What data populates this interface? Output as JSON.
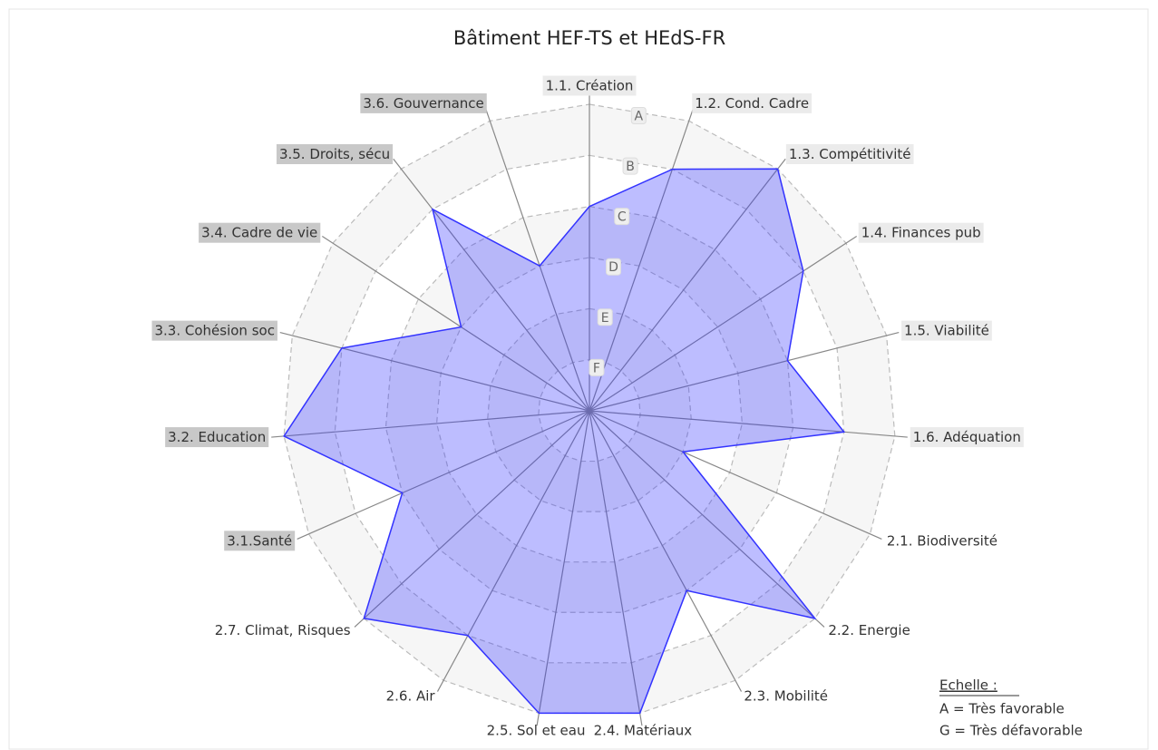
{
  "chart_data": {
    "type": "radar",
    "title": "Bâtiment HEF-TS et HEdS-FR",
    "categories": [
      "1.1. Création",
      "1.2. Cond. Cadre",
      "1.3. Compétitivité",
      "1.4. Finances pub",
      "1.5. Viabilité",
      "1.6. Adéquation",
      "2.1. Biodiversité",
      "2.2. Energie",
      "2.3. Mobilité",
      "2.4. Matériaux",
      "2.5. Sol et eau",
      "2.6. Air",
      "2.7. Climat, Risques",
      "3.1.Santé",
      "3.2. Education",
      "3.3. Cohésion soc",
      "3.4. Cadre de vie",
      "3.5. Droits, sécu",
      "3.6. Gouvernance"
    ],
    "label_colors": [
      "#ebebeb",
      "#ebebeb",
      "#ebebeb",
      "#ebebeb",
      "#ebebeb",
      "#ebebeb",
      "none",
      "none",
      "none",
      "none",
      "none",
      "none",
      "none",
      "#c8c8c8",
      "#c8c8c8",
      "#c8c8c8",
      "#c8c8c8",
      "#c8c8c8",
      "#c8c8c8"
    ],
    "values": [
      4,
      5,
      6,
      5,
      4,
      5,
      2,
      6,
      4,
      6,
      6,
      5,
      6,
      4,
      6,
      5,
      3,
      5,
      3
    ],
    "color": "#3333ff",
    "rlim": [
      0,
      6
    ],
    "rticks": [
      {
        "value": 1,
        "label": "F"
      },
      {
        "value": 2,
        "label": "E"
      },
      {
        "value": 3,
        "label": "D"
      },
      {
        "value": 4,
        "label": "C"
      },
      {
        "value": 5,
        "label": "B"
      },
      {
        "value": 6,
        "label": "A"
      }
    ],
    "legend": {
      "title": "Echelle :",
      "lines": [
        "A = Très favorable",
        "G = Très défavorable"
      ]
    }
  }
}
